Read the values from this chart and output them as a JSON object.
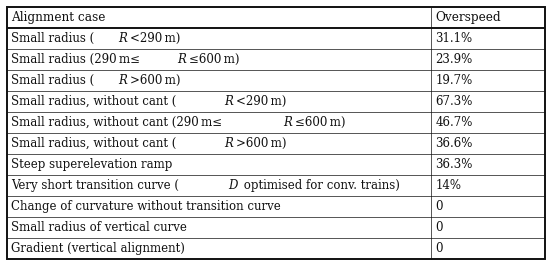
{
  "col_header": [
    "Alignment case",
    "Overspeed"
  ],
  "rows": [
    [
      "Small radius (ℜ<290 m)",
      "31.1%"
    ],
    [
      "Small radius (290 m≤ℜ≤600 m)",
      "23.9%"
    ],
    [
      "Small radius (ℜ>600 m)",
      "19.7%"
    ],
    [
      "Small radius, without cant (ℜ<290 m)",
      "67.3%"
    ],
    [
      "Small radius, without cant (290 m≤ℜ≤600 m)",
      "46.7%"
    ],
    [
      "Small radius, without cant (ℜ>600 m)",
      "36.6%"
    ],
    [
      "Steep superelevation ramp",
      "36.3%"
    ],
    [
      "Very short transition curve (𝐷 optimised for conv. trains)",
      "14%"
    ],
    [
      "Change of curvature without transition curve",
      "0"
    ],
    [
      "Small radius of vertical curve",
      "0"
    ],
    [
      "Gradient (vertical alignment)",
      "0"
    ]
  ],
  "col_split": 0.788,
  "line_color": "#111111",
  "text_color": "#111111",
  "font_size": 8.5,
  "header_font_size": 8.7,
  "lw_outer": 1.4,
  "lw_inner": 0.5
}
